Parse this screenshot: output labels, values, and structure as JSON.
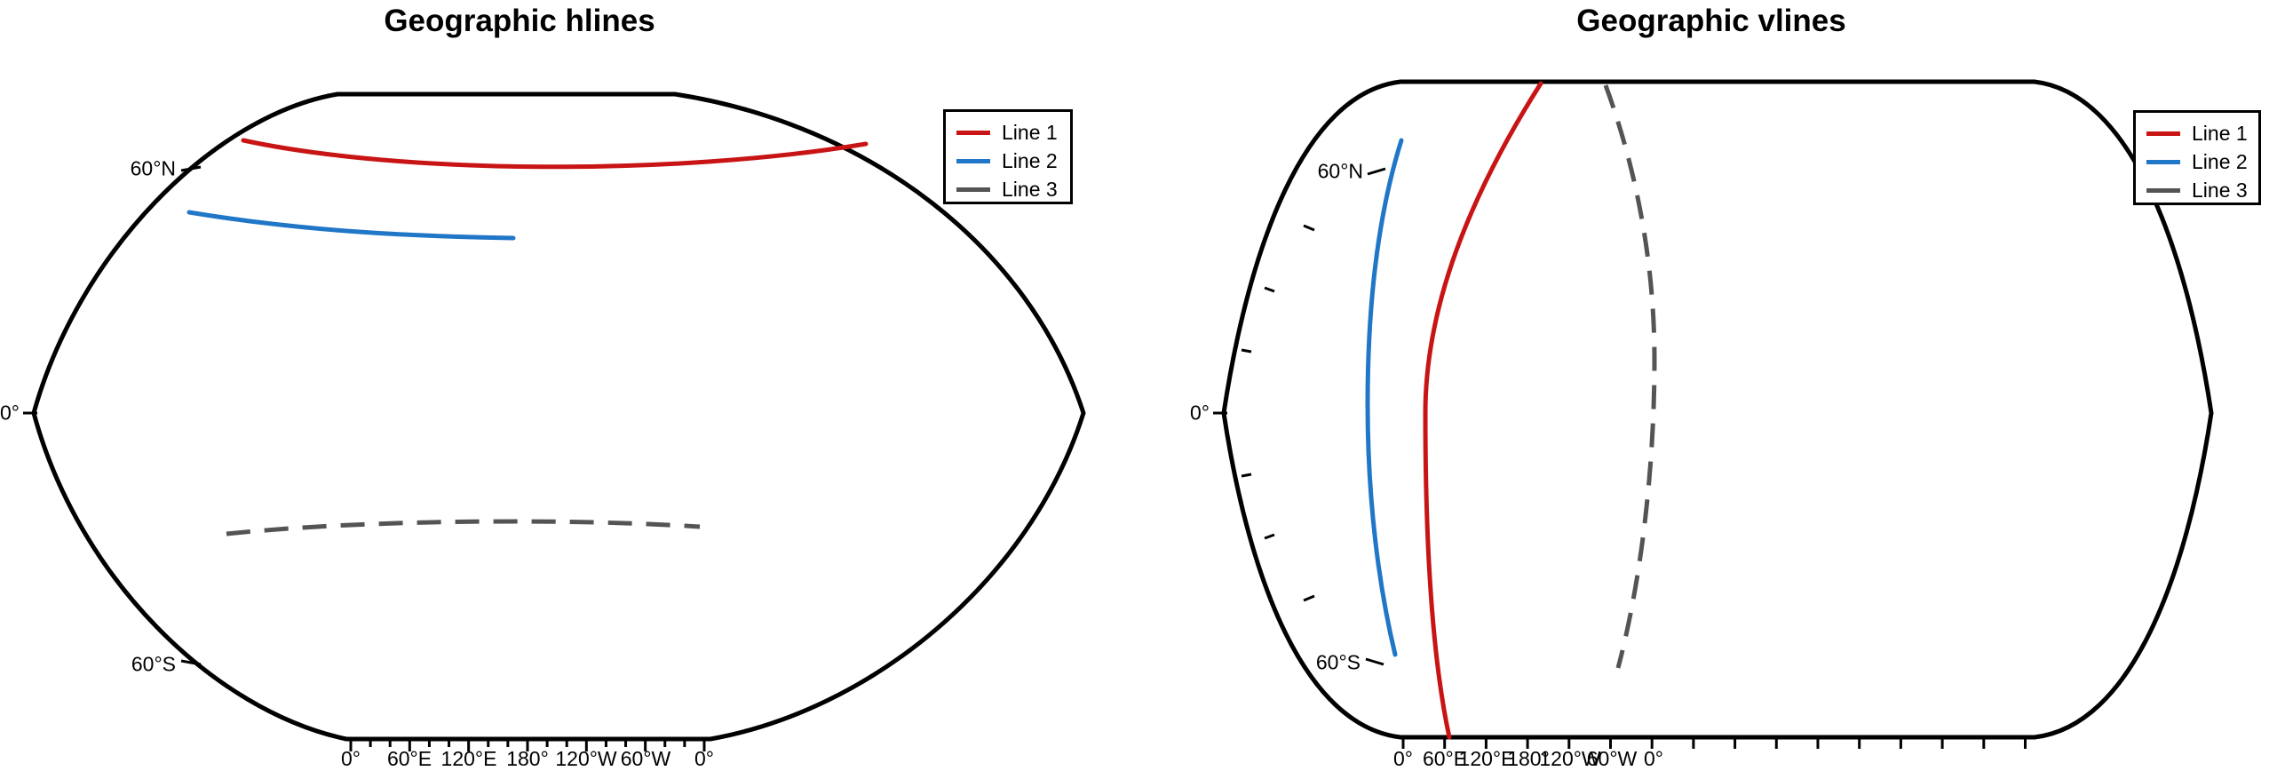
{
  "figure": {
    "kind": "matplotlib-style geographic figure, two pseudocylindrical world-map subplots",
    "background": "#ffffff",
    "accent_colors": {
      "line1": "#c81414",
      "line2": "#2076c7",
      "line3": "#545454",
      "outline": "#000000"
    }
  },
  "panels": [
    {
      "title": "Geographic hlines",
      "lat_labels": [
        "60°N",
        "0°",
        "60°S"
      ],
      "lon_labels": [
        "0°",
        "60°E",
        "120°E",
        "180°",
        "120°W",
        "60°W",
        "0°"
      ],
      "legend": {
        "items": [
          {
            "label": "Line 1",
            "color": "#c81414",
            "style": "solid"
          },
          {
            "label": "Line 2",
            "color": "#2076c7",
            "style": "solid"
          },
          {
            "label": "Line 3",
            "color": "#545454",
            "style": "dashed"
          }
        ]
      }
    },
    {
      "title": "Geographic vlines",
      "lat_labels": [
        "60°N",
        "0°",
        "60°S"
      ],
      "lon_labels": [
        "0°",
        "60°E",
        "120°E",
        "180°",
        "120°W",
        "60°W",
        "0°"
      ],
      "legend": {
        "items": [
          {
            "label": "Line 1",
            "color": "#c81414",
            "style": "solid"
          },
          {
            "label": "Line 2",
            "color": "#2076c7",
            "style": "solid"
          },
          {
            "label": "Line 3",
            "color": "#545454",
            "style": "dashed"
          }
        ]
      }
    }
  ],
  "chart_data": [
    {
      "type": "line",
      "subplot": "left",
      "title": "Geographic hlines",
      "projection": "pseudocylindrical world map (flat pole lines, curved limbs)",
      "x_tick_labels": [
        "0°",
        "60°E",
        "120°E",
        "180°",
        "120°W",
        "60°W",
        "0°"
      ],
      "y_tick_labels": [
        "60°N",
        "0°",
        "60°S"
      ],
      "grid": false,
      "legend_position": "upper right",
      "series": [
        {
          "name": "Line 1",
          "kind": "hline",
          "style": "solid",
          "color": "#c81414",
          "lat": 70,
          "lon_range": [
            -180,
            180
          ]
        },
        {
          "name": "Line 2",
          "kind": "hline",
          "style": "solid",
          "color": "#2076c7",
          "lat": 45,
          "lon_range": [
            0,
            120
          ]
        },
        {
          "name": "Line 3",
          "kind": "hline",
          "style": "dashed",
          "color": "#545454",
          "lat": -30,
          "lon_range": [
            0,
            180
          ]
        }
      ]
    },
    {
      "type": "line",
      "subplot": "right",
      "title": "Geographic vlines",
      "projection": "pseudocylindrical world map (flat pole lines, curved limbs)",
      "x_tick_labels": [
        "0°",
        "60°E",
        "120°E",
        "180°",
        "120°W",
        "60°W",
        "0°"
      ],
      "y_tick_labels": [
        "60°N",
        "0°",
        "60°S"
      ],
      "grid": false,
      "legend_position": "upper right",
      "series": [
        {
          "name": "Line 1",
          "kind": "vline",
          "style": "solid",
          "color": "#c81414",
          "lon": 60,
          "lat_range": [
            -90,
            90
          ]
        },
        {
          "name": "Line 2",
          "kind": "vline",
          "style": "solid",
          "color": "#2076c7",
          "lon": 30,
          "lat_range": [
            -60,
            60
          ]
        },
        {
          "name": "Line 3",
          "kind": "vline",
          "style": "dashed",
          "color": "#545454",
          "lon": -60,
          "lat_range": [
            -75,
            90
          ]
        }
      ]
    }
  ]
}
